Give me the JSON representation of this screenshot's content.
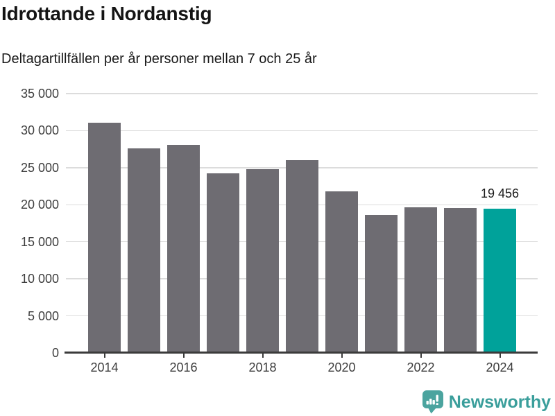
{
  "header": {
    "title": "Idrottande i Nordanstig",
    "subtitle": "Deltagartillfällen per år personer mellan 7 och 25 år"
  },
  "chart_data": {
    "type": "bar",
    "title": "Idrottande i Nordanstig",
    "subtitle": "Deltagartillfällen per år personer mellan 7 och 25 år",
    "xlabel": "",
    "ylabel": "",
    "categories": [
      "2014",
      "2015",
      "2016",
      "2017",
      "2018",
      "2019",
      "2020",
      "2021",
      "2022",
      "2023",
      "2024"
    ],
    "values": [
      31100,
      27600,
      28100,
      24200,
      24800,
      26000,
      21800,
      18600,
      19700,
      19600,
      19456
    ],
    "highlight_index": 10,
    "highlight_label": "19 456",
    "ylim": [
      0,
      35000
    ],
    "ytick_step": 5000,
    "ytick_labels": [
      "0",
      "5 000",
      "10 000",
      "15 000",
      "20 000",
      "25 000",
      "30 000",
      "35 000"
    ],
    "xtick_indices": [
      0,
      2,
      4,
      6,
      8,
      10
    ],
    "xtick_labels": [
      "2014",
      "2016",
      "2018",
      "2020",
      "2022",
      "2024"
    ],
    "grid": true,
    "legend": "none",
    "colors": {
      "bar": "#6e6c72",
      "highlight": "#00a29a",
      "gridline": "#dcdcdc",
      "axis": "#3b3b3b",
      "tick_text": "#3d3d3d"
    }
  },
  "footer": {
    "brand": "Newsworthy",
    "logo_icon": "bar-chart-speech-bubble-icon",
    "brand_color": "#3a9e9b",
    "logo_bg_color": "#4ba49f"
  }
}
